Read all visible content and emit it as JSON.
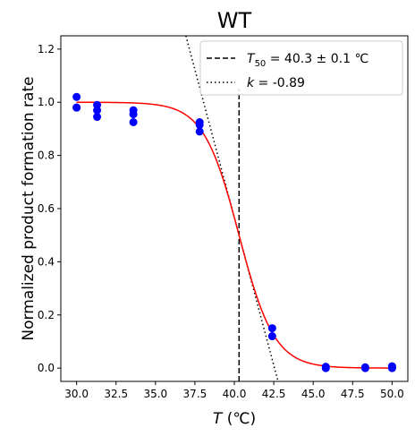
{
  "chart_data": {
    "type": "scatter",
    "title": "WT",
    "xlabel_symbol": "T",
    "xlabel_unit": " (℃)",
    "ylabel": "Normalized product formation rate",
    "xlim": [
      29.0,
      51.0
    ],
    "ylim": [
      -0.05,
      1.25
    ],
    "xticks": [
      30.0,
      32.5,
      35.0,
      37.5,
      40.0,
      42.5,
      45.0,
      47.5,
      50.0
    ],
    "xtick_labels": [
      "30.0",
      "32.5",
      "35.0",
      "37.5",
      "40.0",
      "42.5",
      "45.0",
      "47.5",
      "50.0"
    ],
    "yticks": [
      0.0,
      0.2,
      0.4,
      0.6,
      0.8,
      1.0,
      1.2
    ],
    "ytick_labels": [
      "0.0",
      "0.2",
      "0.4",
      "0.6",
      "0.8",
      "1.0",
      "1.2"
    ],
    "grid": false,
    "legend_position": "top-right",
    "points": {
      "color": "#0000ff",
      "x": [
        30.0,
        30.0,
        30.0,
        31.3,
        31.3,
        31.3,
        33.6,
        33.6,
        33.6,
        37.8,
        37.8,
        37.8,
        42.4,
        42.4,
        45.8,
        45.8,
        48.3,
        48.3,
        50.0,
        50.0,
        50.0
      ],
      "y": [
        1.02,
        0.98,
        0.98,
        0.99,
        0.97,
        0.945,
        0.97,
        0.955,
        0.925,
        0.925,
        0.915,
        0.89,
        0.15,
        0.12,
        0.005,
        0.0,
        0.003,
        0.0,
        0.007,
        0.002,
        0.0
      ]
    },
    "fit_curve": {
      "type": "sigmoid",
      "color": "#ff0000",
      "T50": 40.3,
      "k": -0.89,
      "x_range": [
        30.0,
        50.0
      ]
    },
    "t50_line": {
      "x": 40.3,
      "y_top": 1.05,
      "style": "dashed",
      "color": "#000000"
    },
    "slope_line": {
      "style": "dotted",
      "color": "#000000",
      "x0": 40.3,
      "y0": 0.5,
      "slope": -0.2225
    },
    "legend": [
      {
        "style": "dashed",
        "symbol": "T",
        "subscript": "50",
        "text": " = 40.3 ± 0.1 ℃"
      },
      {
        "style": "dotted",
        "symbol": "k",
        "subscript": "",
        "text": " = -0.89"
      }
    ]
  }
}
